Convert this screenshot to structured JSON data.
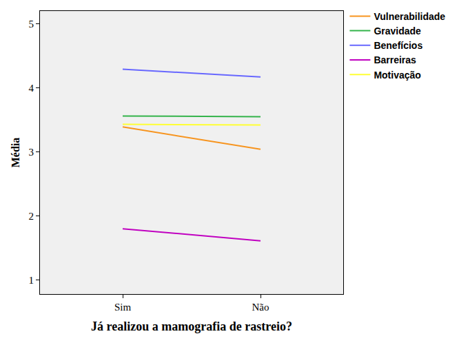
{
  "chart_data": {
    "type": "line",
    "x_label": "Já realizou a mamografia de rastreio?",
    "y_label": "Média",
    "categories": [
      "Sim",
      "Não"
    ],
    "series": [
      {
        "name": "Vulnerabilidade",
        "color": "#f7941e",
        "values": [
          3.39,
          3.04
        ]
      },
      {
        "name": "Gravidade",
        "color": "#33b34a",
        "values": [
          3.56,
          3.55
        ]
      },
      {
        "name": "Benefícios",
        "color": "#6767ff",
        "values": [
          4.29,
          4.17
        ]
      },
      {
        "name": "Barreiras",
        "color": "#c000c0",
        "values": [
          1.8,
          1.61
        ]
      },
      {
        "name": "Motivação",
        "color": "#ffff33",
        "values": [
          3.43,
          3.42
        ]
      }
    ],
    "ylim": [
      0.78,
      5.2
    ],
    "yticks": [
      1,
      2,
      3,
      4,
      5
    ],
    "grid": false,
    "legend": "right"
  }
}
